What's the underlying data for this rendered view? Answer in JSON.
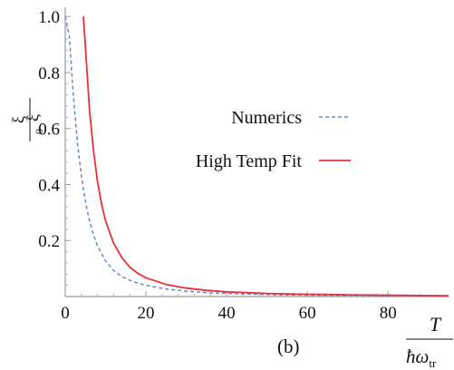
{
  "chart_data": {
    "type": "line",
    "panel_label": "(b)",
    "x_axis": {
      "label_numerator": "T",
      "label_denominator": "ħω",
      "label_denominator_sub": "tr",
      "range": [
        0,
        95
      ],
      "ticks": [
        0,
        20,
        40,
        60,
        80
      ],
      "tick_labels": [
        "0",
        "20",
        "40",
        "60",
        "80"
      ]
    },
    "y_axis": {
      "label_numerator": "ξ",
      "label_denominator": "ξ",
      "label_denominator_sub": "0",
      "range": [
        0,
        1.02
      ],
      "ticks": [
        0.2,
        0.4,
        0.6,
        0.8,
        1.0
      ],
      "tick_labels": [
        "0.2",
        "0.4",
        "0.6",
        "0.8",
        "1.0"
      ]
    },
    "series": [
      {
        "name": "Numerics",
        "style": "dashed",
        "color": "#6f86c6",
        "x": [
          0,
          1,
          2,
          3,
          4,
          5,
          6,
          7,
          8,
          10,
          12,
          14,
          16,
          18,
          20,
          25,
          30,
          35,
          40,
          50,
          60,
          70,
          80,
          95
        ],
        "y": [
          1.0,
          0.93,
          0.72,
          0.55,
          0.43,
          0.34,
          0.27,
          0.22,
          0.18,
          0.127,
          0.093,
          0.072,
          0.058,
          0.048,
          0.04,
          0.027,
          0.019,
          0.014,
          0.011,
          0.007,
          0.005,
          0.004,
          0.003,
          0.002
        ]
      },
      {
        "name": "High Temp Fit",
        "style": "solid",
        "color": "#e8303a",
        "x": [
          4.5,
          5,
          6,
          7,
          8,
          9,
          10,
          12,
          14,
          16,
          18,
          20,
          25,
          30,
          35,
          40,
          50,
          60,
          70,
          80,
          95
        ],
        "y": [
          1.0,
          0.89,
          0.67,
          0.52,
          0.41,
          0.33,
          0.27,
          0.19,
          0.14,
          0.105,
          0.083,
          0.067,
          0.043,
          0.03,
          0.022,
          0.017,
          0.011,
          0.008,
          0.006,
          0.005,
          0.003
        ]
      }
    ]
  }
}
